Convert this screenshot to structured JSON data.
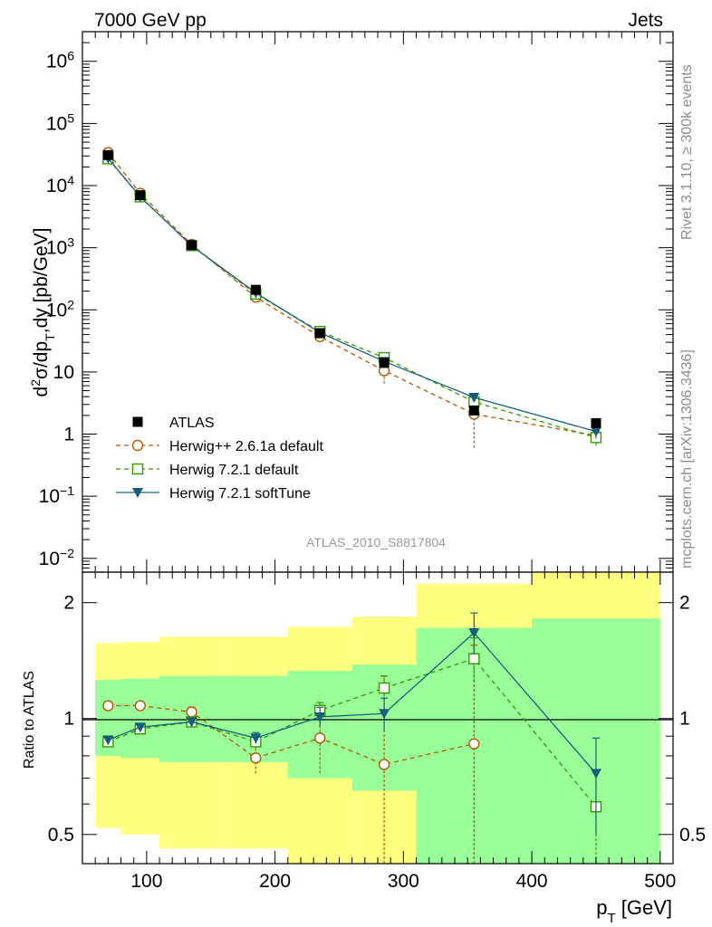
{
  "header": {
    "left": "7000 GeV pp",
    "right": "Jets"
  },
  "side_texts": {
    "rivet": "Rivet 3.1.10, ≥ 300k events",
    "mcplots": "mcplots.cern.ch [arXiv:1306.3436]"
  },
  "colors": {
    "atlas": "#000000",
    "herwigpp": "#b35900",
    "herwig721": "#339900",
    "softtune": "#1a5f7a",
    "band_outer": "#ffff80",
    "band_inner": "#99ff99"
  },
  "chart_data": [
    {
      "type": "line",
      "panel": "main",
      "title": "",
      "watermark": "ATLAS_2010_S8817804",
      "xlabel": "",
      "ylabel": "d²σ/dp_T,dy [pb/GeV]",
      "yscale": "log",
      "xlim": [
        50,
        510
      ],
      "ylim": [
        0.006,
        3000000
      ],
      "ytick_labels": [
        {
          "value": 1000000,
          "base": "10",
          "exp": "6"
        },
        {
          "value": 100000,
          "base": "10",
          "exp": "5"
        },
        {
          "value": 10000,
          "base": "10",
          "exp": "4"
        },
        {
          "value": 1000,
          "base": "10",
          "exp": "3"
        },
        {
          "value": 100,
          "base": "10",
          "exp": "2"
        },
        {
          "value": 10,
          "base": "10",
          "exp": ""
        },
        {
          "value": 1,
          "base": "1",
          "exp": ""
        },
        {
          "value": 0.1,
          "base": "10",
          "exp": "−1"
        },
        {
          "value": 0.01,
          "base": "10",
          "exp": "−2"
        }
      ],
      "legend": [
        {
          "label": "ATLAS",
          "style": "data"
        },
        {
          "label": "Herwig++ 2.6.1a default",
          "style": "circle"
        },
        {
          "label": "Herwig 7.2.1 default",
          "style": "square"
        },
        {
          "label": "Herwig 7.2.1 softTune",
          "style": "triangle"
        }
      ],
      "series": [
        {
          "name": "ATLAS",
          "x": [
            70,
            95,
            135,
            185,
            235,
            285,
            355,
            450
          ],
          "y": [
            31000,
            7000,
            1100,
            210,
            42,
            14,
            2.4,
            1.5
          ]
        },
        {
          "name": "Herwig++ 2.6.1a default",
          "x": [
            70,
            95,
            135,
            185,
            235,
            285,
            355,
            450
          ],
          "y": [
            34000,
            7500,
            1130,
            160,
            37,
            10.5,
            2.1,
            0.95
          ],
          "ylow": [
            33000,
            7200,
            1100,
            150,
            31,
            6.5,
            0.6,
            0.7
          ],
          "yhigh": [
            35000,
            7800,
            1160,
            170,
            43,
            14,
            3.4,
            1.2
          ]
        },
        {
          "name": "Herwig 7.2.1 default",
          "x": [
            70,
            95,
            135,
            185,
            235,
            285,
            355,
            450
          ],
          "y": [
            27000,
            6600,
            1080,
            180,
            45,
            17,
            3.3,
            0.88
          ],
          "ylow": [
            26500,
            6400,
            1060,
            175,
            42,
            15,
            2.8,
            0.65
          ],
          "yhigh": [
            27500,
            6800,
            1100,
            185,
            48,
            19,
            3.8,
            1.1
          ]
        },
        {
          "name": "Herwig 7.2.1 softTune",
          "x": [
            70,
            95,
            135,
            185,
            235,
            285,
            355,
            450
          ],
          "y": [
            27500,
            6650,
            1080,
            188,
            43,
            14.8,
            3.9,
            1.1
          ],
          "ylow": [
            27000,
            6450,
            1060,
            183,
            41,
            13.5,
            3.5,
            0.85
          ],
          "yhigh": [
            28000,
            6850,
            1100,
            193,
            45,
            16,
            4.3,
            1.35
          ]
        }
      ]
    },
    {
      "type": "line",
      "panel": "ratio",
      "xlabel": "p_T [GeV]",
      "ylabel": "Ratio to ATLAS",
      "yscale": "log",
      "xlim": [
        50,
        510
      ],
      "ylim": [
        0.42,
        2.4
      ],
      "x_ticks": [
        100,
        200,
        300,
        400,
        500
      ],
      "y_ticks": [
        0.5,
        1,
        2
      ],
      "ref_line": 1,
      "bands": {
        "edges": [
          60,
          80,
          110,
          160,
          210,
          260,
          310,
          400,
          500
        ],
        "outer_low": [
          0.52,
          0.5,
          0.46,
          0.46,
          0.4,
          0.4,
          0.4,
          0.4
        ],
        "outer_high": [
          1.57,
          1.58,
          1.63,
          1.63,
          1.73,
          1.84,
          2.24,
          2.8
        ],
        "inner_low": [
          0.8,
          0.79,
          0.77,
          0.77,
          0.7,
          0.65,
          0.4,
          0.4
        ],
        "inner_high": [
          1.26,
          1.27,
          1.29,
          1.29,
          1.33,
          1.38,
          1.72,
          1.82
        ]
      },
      "series": [
        {
          "name": "Herwig++ 2.6.1a default",
          "x": [
            70,
            95,
            135,
            185,
            235,
            285,
            355,
            450
          ],
          "y": [
            1.08,
            1.08,
            1.04,
            0.79,
            0.89,
            0.76,
            0.86,
            null
          ],
          "ylow": [
            null,
            null,
            1.0,
            0.72,
            0.72,
            0.4,
            0.4,
            null
          ],
          "yhigh": [
            null,
            null,
            1.07,
            0.86,
            1.05,
            1.29,
            1.55,
            null
          ]
        },
        {
          "name": "Herwig 7.2.1 default",
          "x": [
            70,
            95,
            135,
            185,
            235,
            285,
            355,
            450
          ],
          "y": [
            0.87,
            0.94,
            0.98,
            0.87,
            1.05,
            1.2,
            1.43,
            0.59
          ],
          "ylow": [
            null,
            null,
            0.96,
            0.84,
            1.0,
            1.12,
            1.25,
            0.4
          ],
          "yhigh": [
            null,
            null,
            1.0,
            0.9,
            1.1,
            1.29,
            1.62,
            0.73
          ]
        },
        {
          "name": "Herwig 7.2.1 softTune",
          "x": [
            70,
            95,
            135,
            185,
            235,
            285,
            355,
            450
          ],
          "y": [
            0.88,
            0.95,
            0.98,
            0.89,
            1.01,
            1.03,
            1.67,
            0.72
          ],
          "ylow": [
            null,
            null,
            0.96,
            0.86,
            0.95,
            0.93,
            1.47,
            0.5
          ],
          "yhigh": [
            null,
            null,
            1.0,
            0.92,
            1.07,
            1.13,
            1.88,
            0.89
          ]
        }
      ]
    }
  ]
}
